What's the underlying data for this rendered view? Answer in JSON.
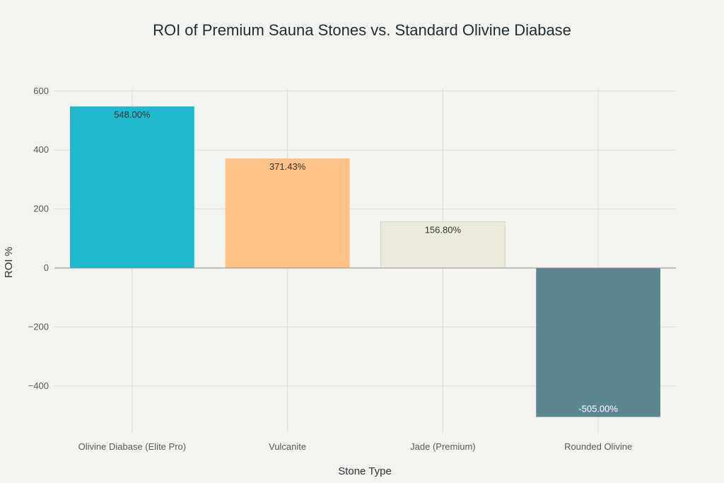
{
  "chart_data": {
    "type": "bar",
    "title": "ROI of Premium Sauna Stones vs. Standard Olivine Diabase",
    "xlabel": "Stone Type",
    "ylabel": "ROI %",
    "categories": [
      "Olivine Diabase (Elite Pro)",
      "Vulcanite",
      "Jade (Premium)",
      "Rounded Olivine"
    ],
    "values": [
      548.0,
      371.43,
      156.8,
      -505.0
    ],
    "data_labels": [
      "548.00%",
      "371.43%",
      "156.80%",
      "-505.00%"
    ],
    "colors": [
      "#1fb8cd",
      "#ffc185",
      "#eceadc",
      "#5d878f"
    ],
    "yticks": [
      -400,
      -200,
      0,
      200,
      400,
      600
    ],
    "ytick_labels": [
      "−400",
      "−200",
      "0",
      "200",
      "400",
      "600"
    ],
    "ylim": [
      -510,
      610
    ],
    "grid": true,
    "legend": "none"
  }
}
